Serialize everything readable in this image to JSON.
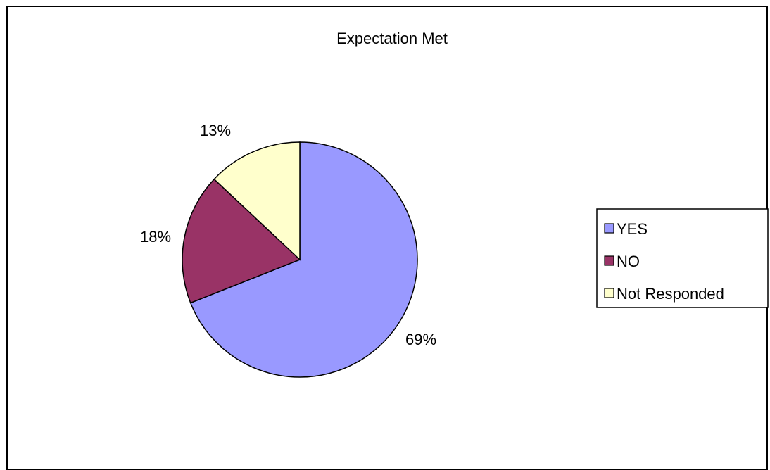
{
  "chart_data": {
    "type": "pie",
    "title": "Expectation Met",
    "slices": [
      {
        "label": "YES",
        "value": 69,
        "percent_label": "69%",
        "color": "#9999ff"
      },
      {
        "label": "NO",
        "value": 18,
        "percent_label": "18%",
        "color": "#993366"
      },
      {
        "label": "Not Responded",
        "value": 13,
        "percent_label": "13%",
        "color": "#ffffcc"
      }
    ],
    "legend_position": "right",
    "start_angle": "12 o'clock",
    "direction": "clockwise"
  }
}
